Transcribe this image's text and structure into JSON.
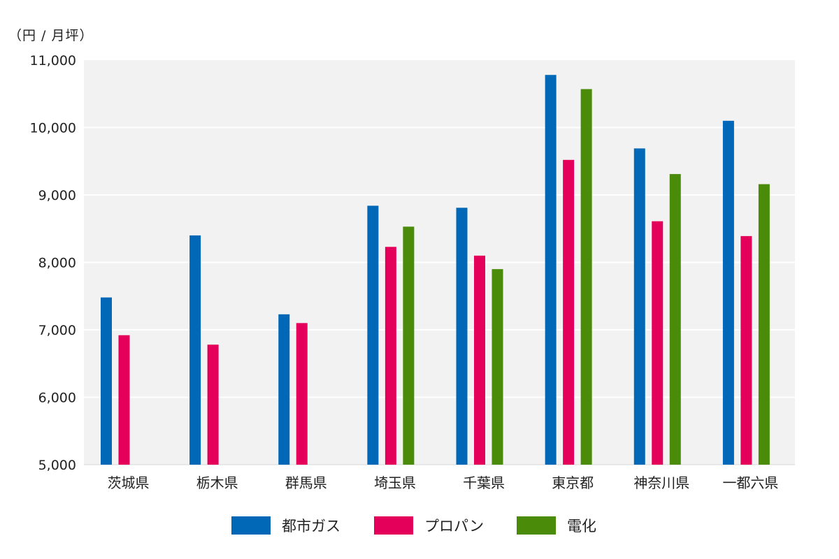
{
  "chart_data": {
    "type": "bar",
    "unit": "（円 / 月坪）",
    "categories": [
      "茨城県",
      "栃木県",
      "群馬県",
      "埼玉県",
      "千葉県",
      "東京都",
      "神奈川県",
      "一都六県"
    ],
    "series": [
      {
        "name": "都市ガス",
        "color": "#0068b7",
        "values": [
          7480,
          8400,
          7230,
          8840,
          8810,
          10780,
          9690,
          10100
        ]
      },
      {
        "name": "プロパン",
        "color": "#e4005a",
        "values": [
          6920,
          6780,
          7100,
          8230,
          8100,
          9520,
          8610,
          8390
        ]
      },
      {
        "name": "電化",
        "color": "#4a8b0a",
        "values": [
          null,
          null,
          null,
          8530,
          7900,
          10570,
          9310,
          9160
        ]
      }
    ],
    "ylim": [
      5000,
      11000
    ],
    "yticks": [
      "5,000",
      "6,000",
      "7,000",
      "8,000",
      "9,000",
      "10,000",
      "11,000"
    ],
    "grid": true,
    "legend_position": "bottom-center",
    "plot_background": "#f2f2f2"
  }
}
